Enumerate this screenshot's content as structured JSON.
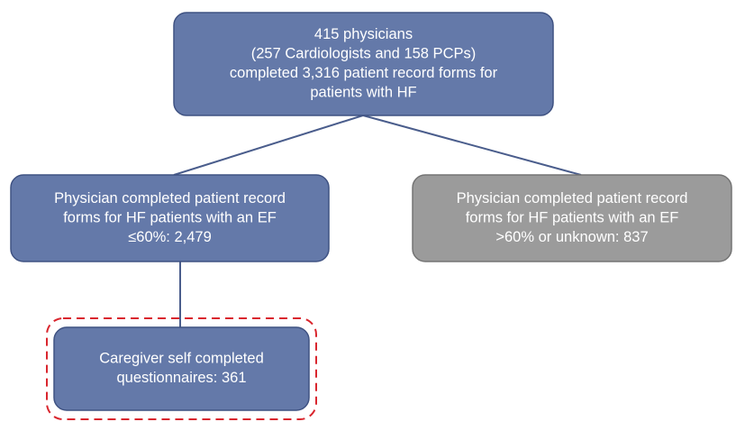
{
  "nodes": [
    {
      "lines": [
        "415 physicians",
        "(257 Cardiologists and 158 PCPs)",
        "completed 3,316 patient record forms for",
        "patients with HF"
      ]
    },
    {
      "lines": [
        "Physician completed patient record",
        "forms for HF patients with an EF",
        "≤60%: 2,479"
      ]
    },
    {
      "lines": [
        "Physician completed patient record",
        "forms for HF patients with an EF",
        ">60% or unknown: 837"
      ]
    },
    {
      "lines": [
        "Caregiver self completed",
        "questionnaires: 361"
      ]
    }
  ]
}
